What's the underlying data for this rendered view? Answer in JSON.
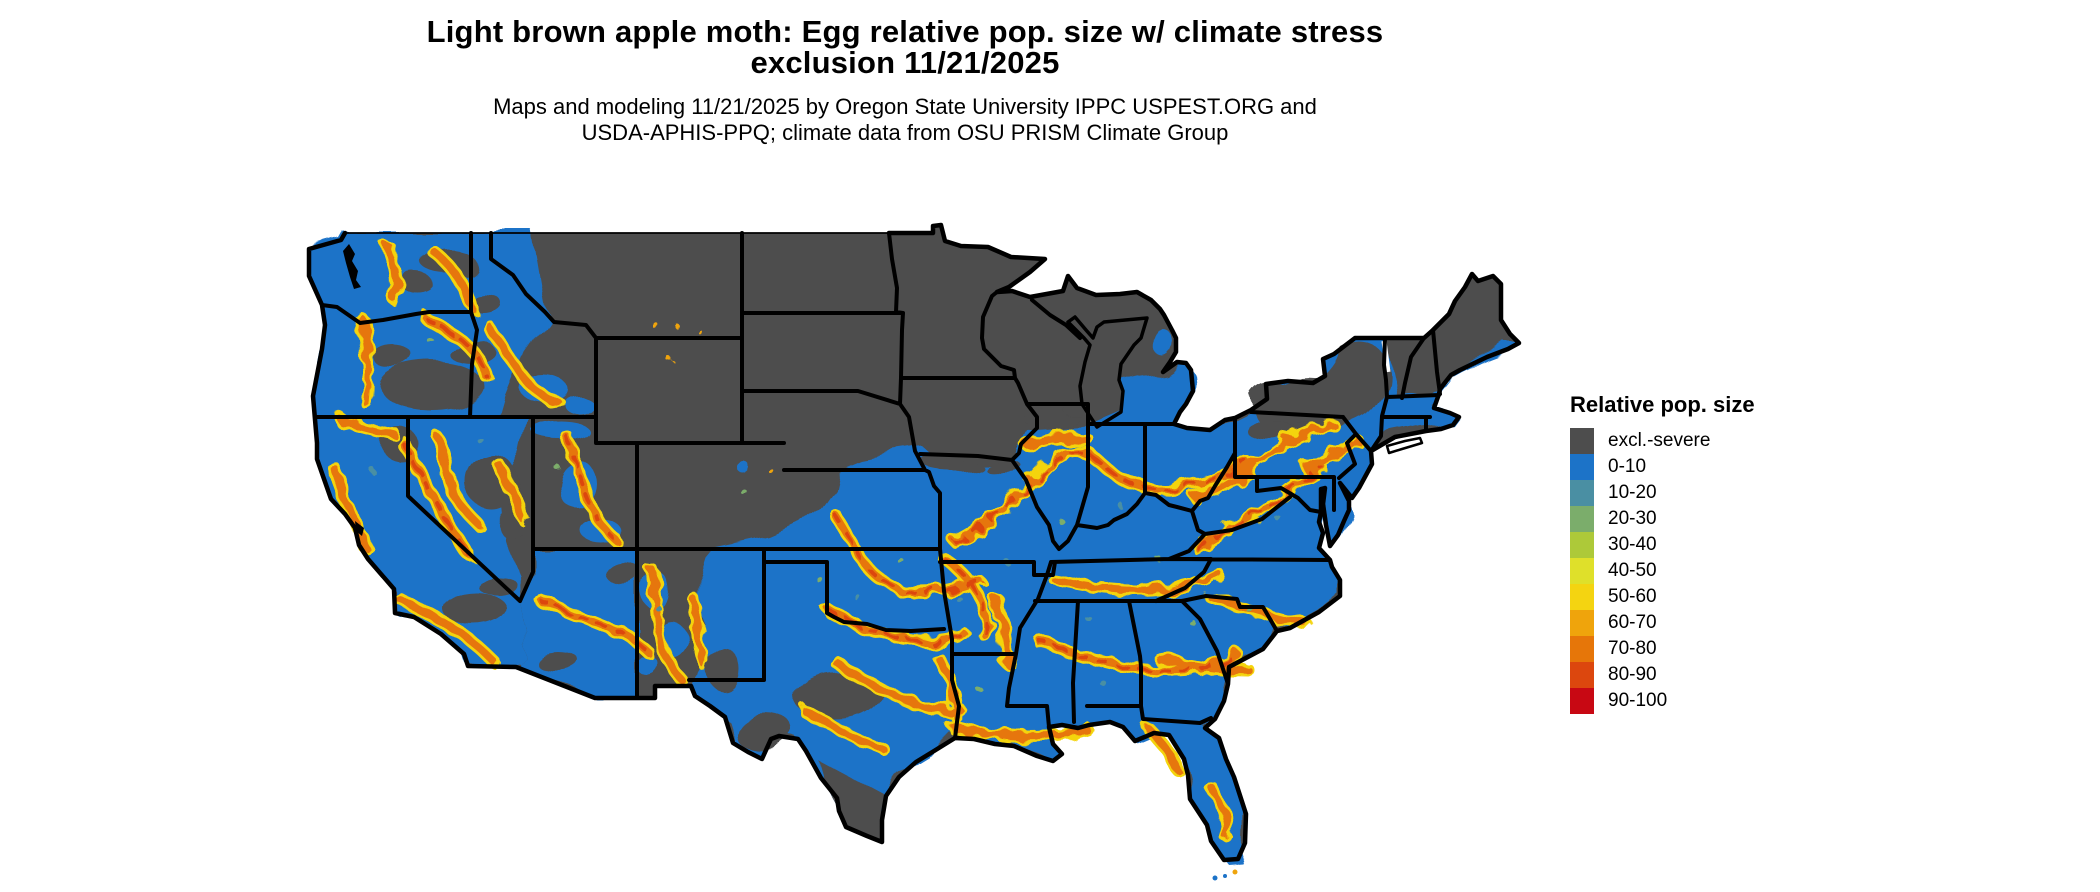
{
  "header": {
    "title_line1": "Light brown apple moth: Egg relative pop. size w/ climate stress",
    "title_line2": "exclusion 11/21/2025",
    "subtitle_line1": "Maps and modeling 11/21/2025 by Oregon State University IPPC USPEST.ORG and",
    "subtitle_line2": "USDA-APHIS-PPQ; climate data from OSU PRISM Climate Group"
  },
  "legend": {
    "title": "Relative pop. size",
    "items": [
      {
        "label": "excl.-severe",
        "color": "#4d4d4d"
      },
      {
        "label": "0-10",
        "color": "#1c73c8"
      },
      {
        "label": "10-20",
        "color": "#4a8fa3"
      },
      {
        "label": "20-30",
        "color": "#7bad6b"
      },
      {
        "label": "30-40",
        "color": "#adc939"
      },
      {
        "label": "40-50",
        "color": "#dfe02a"
      },
      {
        "label": "50-60",
        "color": "#f4d411"
      },
      {
        "label": "60-70",
        "color": "#efa40c"
      },
      {
        "label": "70-80",
        "color": "#e67609"
      },
      {
        "label": "80-90",
        "color": "#dc470e"
      },
      {
        "label": "90-100",
        "color": "#c80813"
      }
    ]
  },
  "map": {
    "name": "Contiguous United States relative population size raster map",
    "land_excluded_color": "#4d4d4d",
    "border_color": "#000000",
    "water_color": "#ffffff"
  }
}
